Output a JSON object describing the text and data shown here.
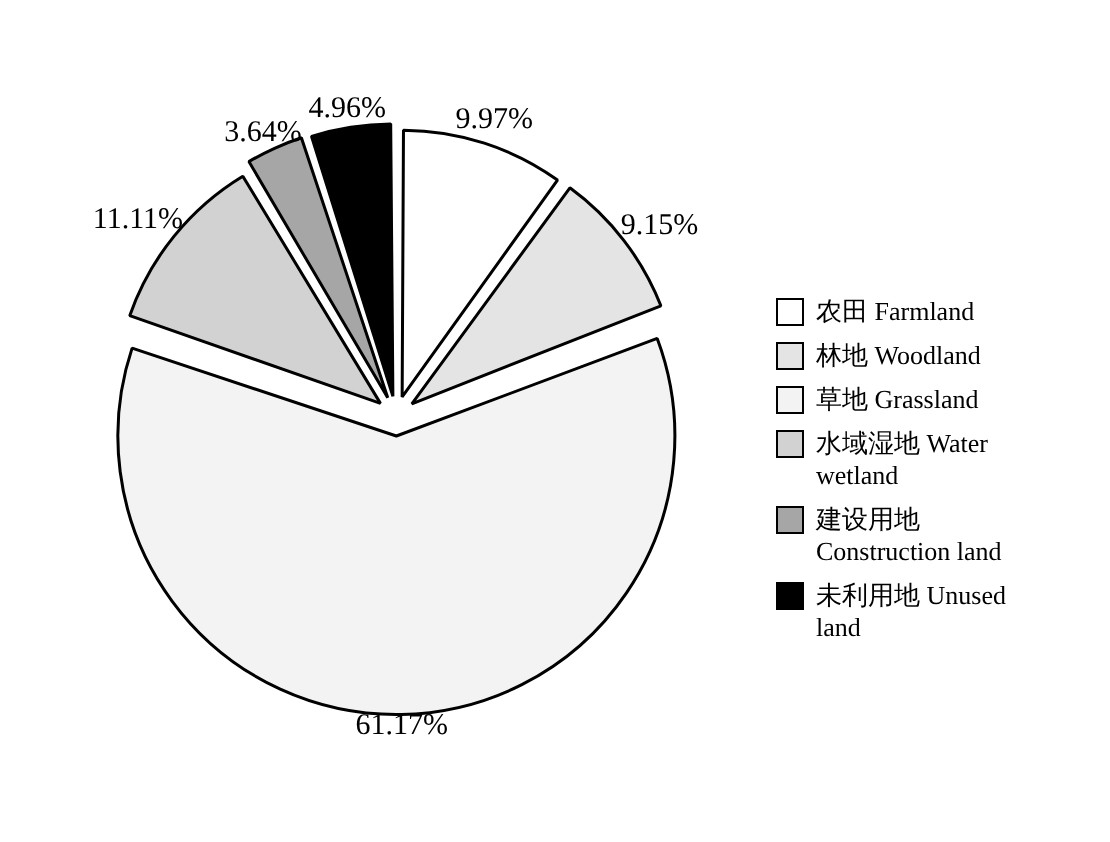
{
  "chart_data": {
    "type": "pie",
    "categories": [
      "农田 Farmland",
      "林地 Woodland",
      "草地  Grassland",
      "水域湿地 Water wetland",
      "建设用地 Construction land",
      "未利用地 Unused land"
    ],
    "values": [
      9.97,
      9.15,
      61.17,
      11.11,
      3.64,
      4.96
    ],
    "colors": [
      "#ffffff",
      "#e4e4e4",
      "#f3f3f3",
      "#d2d2d2",
      "#a6a6a6",
      "#000000"
    ],
    "value_labels": [
      "9.97%",
      "9.15%",
      "61.17%",
      "11.11%",
      "3.64%",
      "4.96%"
    ],
    "legend": "right"
  }
}
